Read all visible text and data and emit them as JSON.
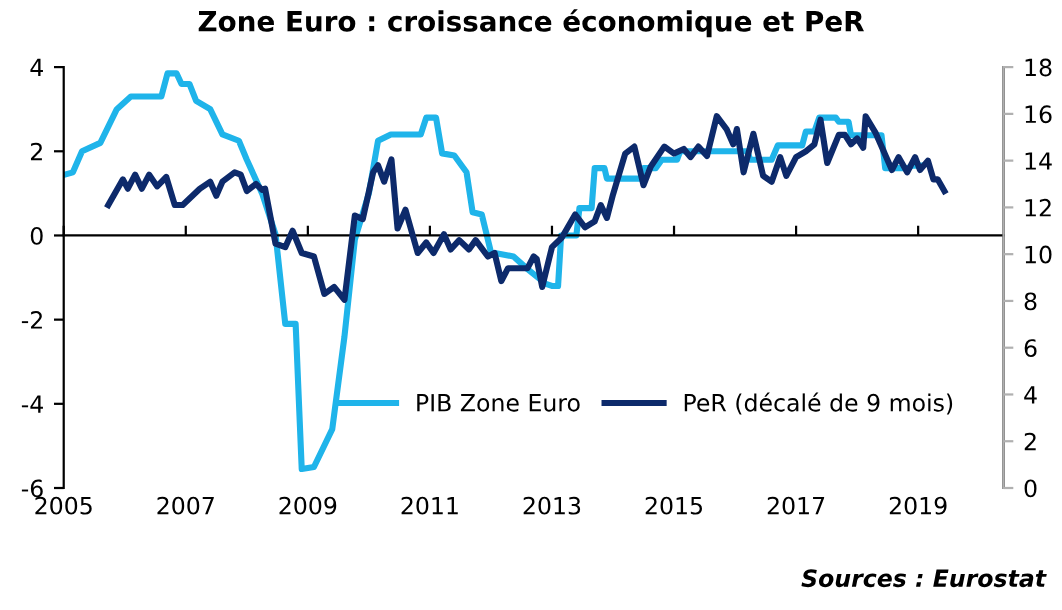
{
  "chart_data": {
    "type": "line",
    "title": "Zone Euro : croissance économique et PeR",
    "xlim": [
      2005,
      2020.4
    ],
    "xticks": [
      2005,
      2007,
      2009,
      2011,
      2013,
      2015,
      2017,
      2019
    ],
    "ylim": [
      -6,
      4
    ],
    "yticks": [
      -6,
      -4,
      -2,
      0,
      2,
      4
    ],
    "y2lim": [
      0,
      18
    ],
    "y2ticks": [
      0,
      2,
      4,
      6,
      8,
      10,
      12,
      14,
      16,
      18
    ],
    "legend": "bottom right",
    "marker": "none",
    "line_style": "solid",
    "annotations": [
      "Sources : Eurostat"
    ],
    "series": [
      {
        "name": "PIB Zone Euro",
        "color": "#1fb4ea",
        "x": [
          2005.0,
          2005.15,
          2005.3,
          2005.6,
          2005.87,
          2006.1,
          2006.6,
          2006.7,
          2006.85,
          2006.93,
          2007.06,
          2007.17,
          2007.4,
          2007.6,
          2007.87,
          2008.0,
          2008.25,
          2008.47,
          2008.63,
          2008.8,
          2008.9,
          2009.1,
          2009.4,
          2009.6,
          2009.77,
          2010.0,
          2010.15,
          2010.36,
          2010.85,
          2010.94,
          2011.1,
          2011.2,
          2011.4,
          2011.6,
          2011.7,
          2011.85,
          2012.0,
          2012.37,
          2012.6,
          2012.9,
          2013.0,
          2013.1,
          2013.15,
          2013.4,
          2013.45,
          2013.65,
          2013.7,
          2013.86,
          2013.9,
          2014.45,
          2014.5,
          2014.7,
          2014.8,
          2015.05,
          2015.1,
          2016.2,
          2016.25,
          2016.6,
          2016.7,
          2017.1,
          2017.16,
          2017.3,
          2017.38,
          2017.65,
          2017.7,
          2017.86,
          2017.9,
          2018.4,
          2018.46,
          2018.84,
          2018.9,
          2019.05
        ],
        "values": [
          1.44,
          1.5,
          2.0,
          2.2,
          3.0,
          3.3,
          3.3,
          3.85,
          3.85,
          3.6,
          3.6,
          3.2,
          3.0,
          2.4,
          2.25,
          1.8,
          1.0,
          0.03,
          -2.1,
          -2.1,
          -5.55,
          -5.5,
          -4.6,
          -2.4,
          -0.1,
          1.0,
          2.25,
          2.4,
          2.4,
          2.8,
          2.8,
          1.95,
          1.9,
          1.5,
          0.55,
          0.5,
          -0.4,
          -0.5,
          -0.8,
          -1.15,
          -1.2,
          -1.2,
          0.0,
          0.0,
          0.65,
          0.65,
          1.6,
          1.6,
          1.35,
          1.35,
          1.6,
          1.6,
          1.8,
          1.8,
          2.0,
          2.0,
          1.8,
          1.8,
          2.14,
          2.14,
          2.47,
          2.47,
          2.8,
          2.8,
          2.7,
          2.7,
          2.38,
          2.38,
          1.6,
          1.6,
          1.66,
          1.66
        ]
      },
      {
        "name": "PeR (décalé de 9 mois)",
        "color": "#0d2a6b",
        "axis": "y2",
        "x": [
          2005.73,
          2005.97,
          2006.05,
          2006.17,
          2006.28,
          2006.4,
          2006.53,
          2006.68,
          2006.82,
          2006.95,
          2007.23,
          2007.4,
          2007.5,
          2007.6,
          2007.8,
          2007.9,
          2008.0,
          2008.15,
          2008.25,
          2008.3,
          2008.47,
          2008.63,
          2008.75,
          2008.9,
          2009.1,
          2009.27,
          2009.43,
          2009.6,
          2009.77,
          2009.9,
          2010.07,
          2010.15,
          2010.25,
          2010.3,
          2010.37,
          2010.47,
          2010.6,
          2010.8,
          2010.94,
          2011.06,
          2011.23,
          2011.34,
          2011.48,
          2011.64,
          2011.75,
          2011.95,
          2012.06,
          2012.17,
          2012.28,
          2012.6,
          2012.7,
          2012.75,
          2012.84,
          2013.0,
          2013.16,
          2013.38,
          2013.54,
          2013.7,
          2013.8,
          2013.9,
          2014.0,
          2014.2,
          2014.35,
          2014.5,
          2014.62,
          2014.84,
          2015.0,
          2015.16,
          2015.27,
          2015.4,
          2015.54,
          2015.7,
          2015.86,
          2015.97,
          2016.03,
          2016.14,
          2016.3,
          2016.46,
          2016.6,
          2016.74,
          2016.84,
          2017.0,
          2017.16,
          2017.3,
          2017.4,
          2017.51,
          2017.7,
          2017.8,
          2017.9,
          2018.0,
          2018.1,
          2018.14,
          2018.3,
          2018.57,
          2018.68,
          2018.82,
          2018.95,
          2019.03,
          2019.16,
          2019.25,
          2019.32,
          2019.43
        ],
        "values": [
          12.1,
          13.2,
          12.8,
          13.4,
          12.8,
          13.4,
          12.9,
          13.3,
          12.1,
          12.1,
          12.8,
          13.1,
          12.5,
          13.1,
          13.5,
          13.4,
          12.7,
          13.0,
          12.75,
          12.8,
          10.45,
          10.3,
          11.0,
          10.05,
          9.9,
          8.3,
          8.6,
          8.05,
          11.65,
          11.5,
          13.5,
          13.8,
          13.1,
          13.5,
          14.05,
          11.1,
          11.9,
          10.05,
          10.5,
          10.05,
          10.85,
          10.2,
          10.6,
          10.2,
          10.6,
          9.9,
          10.05,
          8.85,
          9.4,
          9.4,
          9.9,
          9.8,
          8.6,
          10.3,
          10.7,
          11.7,
          11.15,
          11.4,
          12.1,
          11.55,
          12.55,
          14.3,
          14.6,
          12.95,
          13.75,
          14.6,
          14.3,
          14.5,
          14.15,
          14.6,
          14.2,
          15.9,
          15.35,
          14.7,
          15.35,
          13.5,
          15.15,
          13.35,
          13.1,
          14.15,
          13.35,
          14.15,
          14.4,
          14.7,
          15.75,
          13.9,
          15.1,
          15.1,
          14.7,
          14.95,
          14.55,
          15.9,
          15.2,
          13.6,
          14.15,
          13.5,
          14.15,
          13.6,
          14.0,
          13.2,
          13.2,
          12.7
        ]
      }
    ]
  }
}
